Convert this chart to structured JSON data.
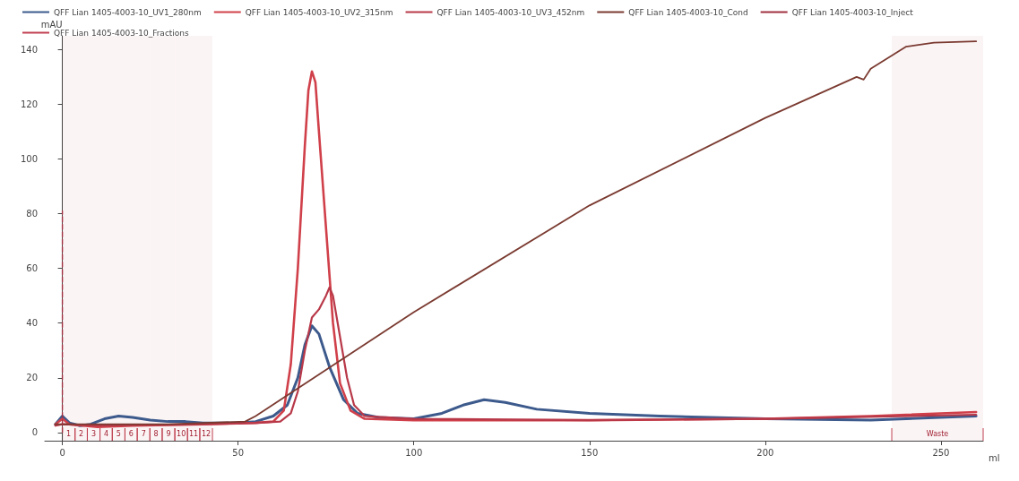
{
  "chart_data": {
    "type": "line",
    "xlabel": "ml",
    "ylabel": "mAU",
    "xlim": [
      -5,
      262
    ],
    "ylim": [
      -3,
      145
    ],
    "xticks": [
      0,
      50,
      100,
      150,
      200,
      250
    ],
    "yticks": [
      0,
      20,
      40,
      60,
      80,
      100,
      120,
      140
    ],
    "legend": "top left",
    "marker": "none",
    "line_style": "solid",
    "annotations": [
      "QFF Lian 1405-4003-10_Fractions"
    ],
    "bands": [
      {
        "axis": "x",
        "from": 0,
        "to": 3.6,
        "label": "1",
        "color": "#c04050"
      },
      {
        "axis": "x",
        "from": 3.6,
        "to": 7.1,
        "label": "2",
        "color": "#c04050"
      },
      {
        "axis": "x",
        "from": 7.1,
        "to": 10.7,
        "label": "3",
        "color": "#c04050"
      },
      {
        "axis": "x",
        "from": 10.7,
        "to": 14.2,
        "label": "4",
        "color": "#c04050"
      },
      {
        "axis": "x",
        "from": 14.2,
        "to": 17.8,
        "label": "5",
        "color": "#c04050"
      },
      {
        "axis": "x",
        "from": 17.8,
        "to": 21.3,
        "label": "6",
        "color": "#c04050"
      },
      {
        "axis": "x",
        "from": 21.3,
        "to": 24.9,
        "label": "7",
        "color": "#c04050"
      },
      {
        "axis": "x",
        "from": 24.9,
        "to": 28.4,
        "label": "8",
        "color": "#c04050"
      },
      {
        "axis": "x",
        "from": 28.4,
        "to": 32.0,
        "label": "9",
        "color": "#c04050"
      },
      {
        "axis": "x",
        "from": 32.0,
        "to": 35.6,
        "label": "10",
        "color": "#c04050"
      },
      {
        "axis": "x",
        "from": 35.6,
        "to": 39.1,
        "label": "11",
        "color": "#c04050"
      },
      {
        "axis": "x",
        "from": 39.1,
        "to": 42.7,
        "label": "12",
        "color": "#c04050"
      },
      {
        "axis": "x",
        "from": 236,
        "to": 262,
        "label": "Waste",
        "color": "#c04050"
      }
    ],
    "series": [
      {
        "name": "QFF Lian 1405-4003-10_UV1_280nm",
        "color": "#3d5a8c",
        "x": [
          -2,
          0,
          2,
          5,
          8,
          12,
          16,
          20,
          25,
          30,
          35,
          40,
          45,
          50,
          55,
          60,
          64,
          67,
          69,
          71,
          73,
          76,
          80,
          84,
          90,
          100,
          108,
          114,
          120,
          126,
          135,
          150,
          170,
          200,
          230,
          260
        ],
        "values": [
          3,
          6,
          3.5,
          2.5,
          3,
          5,
          6,
          5.5,
          4.5,
          4,
          4,
          3.5,
          3.5,
          3.5,
          4,
          6,
          10,
          20,
          32,
          39,
          36,
          24,
          12,
          7,
          5.5,
          5,
          7,
          10,
          12,
          11,
          8.5,
          7,
          6,
          5,
          4.5,
          6
        ]
      },
      {
        "name": "QFF Lian 1405-4003-10_UV2_315nm",
        "color": "#d0404a",
        "x": [
          -2,
          0,
          2,
          10,
          20,
          40,
          55,
          60,
          63,
          65,
          67,
          69,
          70,
          71,
          72,
          73,
          75,
          77,
          79,
          82,
          86,
          100,
          150,
          200,
          230,
          260
        ],
        "values": [
          3,
          5,
          3,
          2,
          2.5,
          3,
          3.5,
          4,
          8,
          25,
          60,
          105,
          125,
          132,
          128,
          110,
          75,
          40,
          18,
          8,
          5,
          4.5,
          4.5,
          5,
          6,
          7.5
        ]
      },
      {
        "name": "QFF Lian 1405-4003-10_UV3_452nm",
        "color": "#b83848",
        "x": [
          -2,
          0,
          10,
          40,
          55,
          62,
          65,
          67,
          69,
          71,
          73,
          75,
          76,
          77,
          79,
          81,
          83,
          86,
          100,
          150,
          200,
          260
        ],
        "values": [
          2.5,
          3,
          2.5,
          3,
          3.5,
          4,
          7,
          15,
          30,
          42,
          45,
          50,
          53,
          50,
          35,
          20,
          10,
          6,
          5,
          4.5,
          5,
          6.5
        ]
      },
      {
        "name": "QFF Lian 1405-4003-10_Cond",
        "color": "#7a3a30",
        "x": [
          -2,
          0,
          30,
          52,
          55,
          100,
          150,
          200,
          226,
          228,
          230,
          240,
          248,
          260
        ],
        "values": [
          3,
          3,
          3,
          4,
          6,
          44,
          83,
          115,
          130,
          129,
          133,
          141,
          142.5,
          143
        ]
      },
      {
        "name": "QFF Lian 1405-4003-10_Inject",
        "color": "#a03040",
        "line_style": "dashed",
        "x": [
          0,
          0
        ],
        "values": [
          0,
          81
        ]
      }
    ]
  }
}
